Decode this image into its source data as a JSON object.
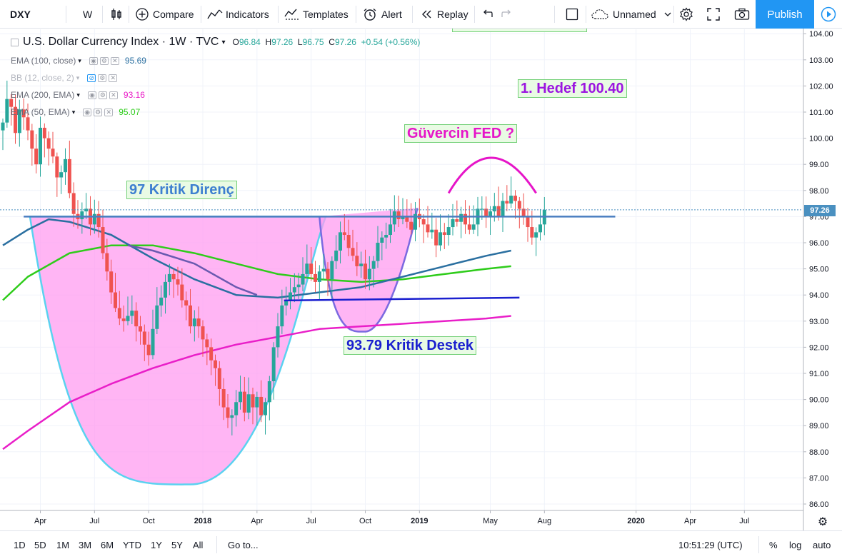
{
  "toolbar": {
    "symbol": "DXY",
    "interval": "W",
    "compare_label": "Compare",
    "indicators_label": "Indicators",
    "templates_label": "Templates",
    "alert_label": "Alert",
    "replay_label": "Replay",
    "layout_name": "Unnamed",
    "publish_label": "Publish"
  },
  "legend": {
    "title": "U.S. Dollar Currency Index · 1W · TVC",
    "open": "96.84",
    "high": "97.26",
    "low": "96.75",
    "close": "97.26",
    "change": "+0.54 (+0.56%)",
    "indicators": [
      {
        "name": "EMA (100, close)",
        "value": "95.69",
        "color": "#2a6fa0"
      },
      {
        "name": "BB (12, close, 2)",
        "value": "",
        "color": "#9598a1"
      },
      {
        "name": "EMA (200, EMA)",
        "value": "93.16",
        "color": "#e91ec8"
      },
      {
        "name": "EMA (50, EMA)",
        "value": "95.07",
        "color": "#2ecc1a"
      }
    ]
  },
  "annotations": {
    "target": "1. Hedef 100.40",
    "fed": "Güvercin FED ?",
    "resistance": "97 Kritik Direnç",
    "support": "93.79 Kritik Destek"
  },
  "bottombar": {
    "ranges": [
      "1D",
      "5D",
      "1M",
      "3M",
      "6M",
      "YTD",
      "1Y",
      "5Y",
      "All"
    ],
    "goto_label": "Go to...",
    "time": "10:51:29 (UTC)",
    "percent_label": "%",
    "log_label": "log",
    "auto_label": "auto"
  },
  "chart_data": {
    "type": "candlestick",
    "symbol": "DXY",
    "timeframe": "1W",
    "ylim": [
      85.6,
      104.3
    ],
    "y_ticks": [
      "86.00",
      "87.00",
      "88.00",
      "89.00",
      "90.00",
      "91.00",
      "92.00",
      "93.00",
      "94.00",
      "95.00",
      "96.00",
      "97.00",
      "98.00",
      "99.00",
      "100.00",
      "101.00",
      "102.00",
      "103.00",
      "104.00"
    ],
    "x_ticks": [
      {
        "label": "Apr",
        "t": 13
      },
      {
        "label": "Jul",
        "t": 26
      },
      {
        "label": "Oct",
        "t": 39
      },
      {
        "label": "2018",
        "t": 52
      },
      {
        "label": "Apr",
        "t": 65
      },
      {
        "label": "Jul",
        "t": 78
      },
      {
        "label": "Oct",
        "t": 91
      },
      {
        "label": "2019",
        "t": 104
      },
      {
        "label": "May",
        "t": 121
      },
      {
        "label": "Aug",
        "t": 134
      },
      {
        "label": "2020",
        "t": 156
      },
      {
        "label": "Apr",
        "t": 169
      },
      {
        "label": "Jul",
        "t": 182
      }
    ],
    "xlim": [
      4,
      196
    ],
    "last_price": "97.26",
    "closes": [
      100.6,
      101.5,
      101.2,
      100.2,
      101.1,
      100.8,
      100.3,
      99.6,
      99.0,
      100.4,
      100.0,
      99.6,
      99.3,
      98.5,
      98.7,
      99.2,
      97.9,
      97.1,
      96.9,
      97.2,
      97.3,
      96.7,
      97.1,
      96.6,
      95.6,
      94.9,
      94.1,
      93.5,
      93.1,
      93.0,
      93.2,
      93.4,
      92.8,
      92.6,
      92.1,
      91.7,
      92.7,
      93.6,
      93.9,
      94.5,
      94.8,
      94.6,
      94.4,
      93.8,
      93.6,
      92.8,
      93.1,
      92.8,
      92.3,
      92.0,
      91.5,
      91.2,
      90.4,
      89.7,
      89.3,
      89.4,
      89.9,
      90.3,
      89.5,
      90.2,
      89.7,
      90.1,
      89.4,
      89.9,
      90.7,
      92.0,
      92.8,
      93.6,
      93.8,
      94.1,
      94.3,
      94.4,
      94.8,
      95.2,
      94.8,
      94.5,
      94.9,
      95.0,
      94.6,
      95.3,
      95.7,
      96.4,
      96.3,
      95.8,
      95.5,
      95.1,
      95.2,
      94.6,
      95.0,
      95.3,
      96.0,
      96.2,
      96.3,
      96.7,
      97.2,
      96.9,
      97.0,
      96.8,
      96.5,
      97.1,
      96.9,
      96.7,
      96.4,
      96.5,
      95.9,
      96.4,
      96.3,
      96.6,
      96.9,
      96.8,
      97.1,
      96.7,
      96.5,
      96.7,
      97.3,
      97.3,
      97.0,
      97.2,
      97.4,
      97.0,
      97.6,
      97.5,
      97.8,
      97.6,
      97.3,
      97.0,
      96.6,
      96.2,
      96.4,
      96.7,
      97.26
    ],
    "ema_50": [
      [
        4,
        93.8
      ],
      [
        10,
        94.7
      ],
      [
        20,
        95.6
      ],
      [
        30,
        95.9
      ],
      [
        40,
        95.9
      ],
      [
        50,
        95.6
      ],
      [
        60,
        95.2
      ],
      [
        70,
        94.8
      ],
      [
        80,
        94.6
      ],
      [
        90,
        94.5
      ],
      [
        100,
        94.6
      ],
      [
        110,
        94.8
      ],
      [
        120,
        95.0
      ],
      [
        126,
        95.1
      ]
    ],
    "ema_100": [
      [
        4,
        95.9
      ],
      [
        10,
        96.5
      ],
      [
        15,
        96.9
      ],
      [
        20,
        96.8
      ],
      [
        30,
        96.3
      ],
      [
        40,
        95.4
      ],
      [
        50,
        94.6
      ],
      [
        60,
        94.0
      ],
      [
        70,
        93.9
      ],
      [
        80,
        94.1
      ],
      [
        90,
        94.3
      ],
      [
        100,
        94.7
      ],
      [
        110,
        95.1
      ],
      [
        120,
        95.5
      ],
      [
        126,
        95.7
      ]
    ],
    "ema_200": [
      [
        4,
        88.1
      ],
      [
        10,
        88.8
      ],
      [
        20,
        89.9
      ],
      [
        30,
        90.6
      ],
      [
        40,
        91.2
      ],
      [
        50,
        91.7
      ],
      [
        60,
        92.1
      ],
      [
        70,
        92.4
      ],
      [
        80,
        92.7
      ],
      [
        90,
        92.8
      ],
      [
        100,
        92.9
      ],
      [
        110,
        93.0
      ],
      [
        120,
        93.1
      ],
      [
        126,
        93.2
      ]
    ],
    "levels": {
      "resistance": 97.0,
      "support": 93.79,
      "target": 100.4
    }
  }
}
